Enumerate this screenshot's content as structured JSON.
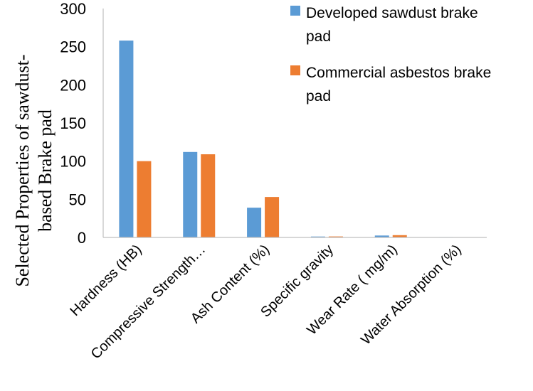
{
  "chart_data": {
    "type": "bar",
    "title": "",
    "xlabel": "",
    "ylabel_lines": [
      "Selected Properties of sawdust-",
      "based Brake pad"
    ],
    "ylim": [
      0,
      300
    ],
    "yticks": [
      0,
      50,
      100,
      150,
      200,
      250,
      300
    ],
    "grid": false,
    "legend_position": "top-right",
    "categories": [
      "Hardness (HB)",
      "Compressive Strength…",
      "Ash Content (%)",
      "Specific gravity",
      "Wear Rate ( mg/m)",
      "Water Absorption (%)"
    ],
    "series": [
      {
        "name_lines": [
          "Developed sawdust brake",
          "pad"
        ],
        "color": "#5B9BD5",
        "values": [
          258,
          112,
          39,
          1.2,
          2.5,
          0.5
        ]
      },
      {
        "name_lines": [
          "Commercial asbestos brake",
          "pad"
        ],
        "color": "#ED7D31",
        "values": [
          100,
          109,
          53,
          1.3,
          3,
          0.3
        ]
      }
    ]
  }
}
